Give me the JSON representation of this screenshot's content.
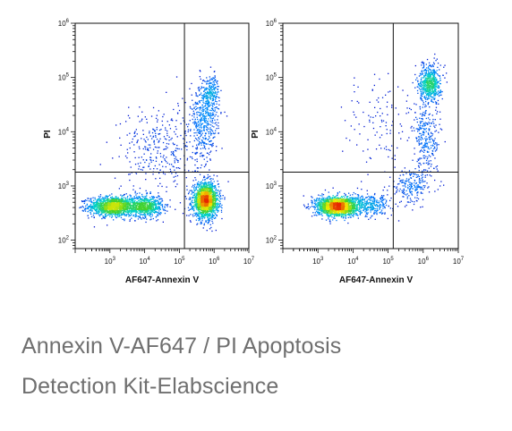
{
  "caption": {
    "line1": "Annexin V-AF647 / PI Apoptosis",
    "line2": "Detection Kit-Elabscience"
  },
  "chart_data": [
    {
      "type": "scatter",
      "plot_style": "flow-cytometry density dot plot",
      "xlabel": "AF647-Annexin V",
      "ylabel": "PI",
      "x_scale": "log",
      "y_scale": "log",
      "xlim": [
        100,
        10000000
      ],
      "ylim": [
        70,
        1000000
      ],
      "x_ticks": [
        {
          "base": "10",
          "exp": "3",
          "value": 1000
        },
        {
          "base": "10",
          "exp": "4",
          "value": 10000
        },
        {
          "base": "10",
          "exp": "5",
          "value": 100000
        },
        {
          "base": "10",
          "exp": "6",
          "value": 1000000
        },
        {
          "base": "10",
          "exp": "7",
          "value": 10000000
        }
      ],
      "y_ticks": [
        {
          "base": "10",
          "exp": "2",
          "value": 100
        },
        {
          "base": "10",
          "exp": "3",
          "value": 1000
        },
        {
          "base": "10",
          "exp": "4",
          "value": 10000
        },
        {
          "base": "10",
          "exp": "5",
          "value": 100000
        },
        {
          "base": "10",
          "exp": "6",
          "value": 1000000
        }
      ],
      "quadrant_gate": {
        "x": 140000,
        "y": 1800
      },
      "populations": [
        {
          "cx": 1200,
          "cy": 430,
          "sx": 0.35,
          "sy": 0.09,
          "n": 1300
        },
        {
          "cx": 10000,
          "cy": 430,
          "sx": 0.25,
          "sy": 0.1,
          "n": 700
        },
        {
          "cx": 550000,
          "cy": 550,
          "sx": 0.18,
          "sy": 0.16,
          "n": 1700
        },
        {
          "cx": 500000,
          "cy": 15000,
          "sx": 0.2,
          "sy": 0.35,
          "n": 450
        },
        {
          "cx": 800000,
          "cy": 55000,
          "sx": 0.12,
          "sy": 0.15,
          "n": 200
        },
        {
          "cx": 30000,
          "cy": 5000,
          "sx": 0.6,
          "sy": 0.4,
          "n": 350
        }
      ]
    },
    {
      "type": "scatter",
      "plot_style": "flow-cytometry density dot plot",
      "xlabel": "AF647-Annexin V",
      "ylabel": "PI",
      "x_scale": "log",
      "y_scale": "log",
      "xlim": [
        100,
        10000000
      ],
      "ylim": [
        70,
        1000000
      ],
      "x_ticks": [
        {
          "base": "10",
          "exp": "3",
          "value": 1000
        },
        {
          "base": "10",
          "exp": "4",
          "value": 10000
        },
        {
          "base": "10",
          "exp": "5",
          "value": 100000
        },
        {
          "base": "10",
          "exp": "6",
          "value": 1000000
        },
        {
          "base": "10",
          "exp": "7",
          "value": 10000000
        }
      ],
      "y_ticks": [
        {
          "base": "10",
          "exp": "2",
          "value": 100
        },
        {
          "base": "10",
          "exp": "3",
          "value": 1000
        },
        {
          "base": "10",
          "exp": "4",
          "value": 10000
        },
        {
          "base": "10",
          "exp": "5",
          "value": 100000
        },
        {
          "base": "10",
          "exp": "6",
          "value": 1000000
        }
      ],
      "quadrant_gate": {
        "x": 140000,
        "y": 1800
      },
      "populations": [
        {
          "cx": 3500,
          "cy": 430,
          "sx": 0.3,
          "sy": 0.09,
          "n": 1700
        },
        {
          "cx": 30000,
          "cy": 450,
          "sx": 0.3,
          "sy": 0.1,
          "n": 300
        },
        {
          "cx": 1500000,
          "cy": 80000,
          "sx": 0.15,
          "sy": 0.17,
          "n": 600
        },
        {
          "cx": 1200000,
          "cy": 8000,
          "sx": 0.2,
          "sy": 0.35,
          "n": 280
        },
        {
          "cx": 500000,
          "cy": 1000,
          "sx": 0.25,
          "sy": 0.15,
          "n": 200
        },
        {
          "cx": 70000,
          "cy": 15000,
          "sx": 0.6,
          "sy": 0.5,
          "n": 130
        }
      ]
    }
  ]
}
